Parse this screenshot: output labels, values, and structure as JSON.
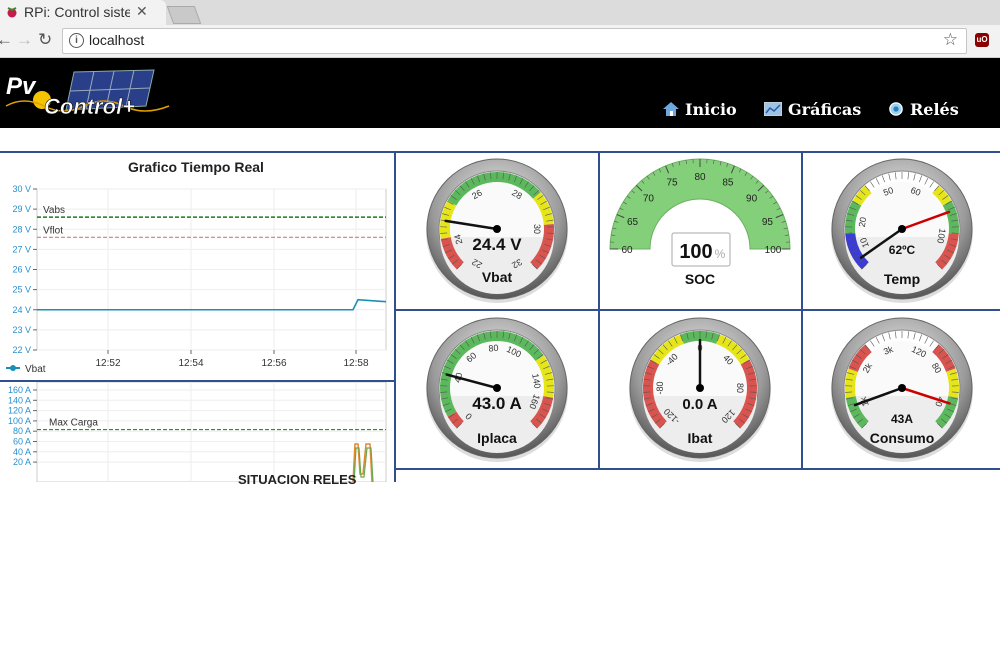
{
  "browser": {
    "tab_title": "RPi: Control sistema",
    "url": "localhost",
    "ext_label": "uO"
  },
  "header": {
    "logo_text": "PvControl+",
    "menu": [
      {
        "label": "Inicio",
        "icon": "home-icon"
      },
      {
        "label": "Gráficas",
        "icon": "chart-image-icon"
      },
      {
        "label": "Relés",
        "icon": "relay-circle-icon"
      }
    ]
  },
  "colors": {
    "accent": "#2f4f8f",
    "green": "#5cb85c",
    "yellow": "#e5e51a",
    "red": "#d9534f",
    "header_bg": "#000000"
  },
  "chart1": {
    "title": "Grafico Tiempo Real",
    "y_ticks": [
      "30 V",
      "29 V",
      "28 V",
      "27 V",
      "26 V",
      "25 V",
      "24 V",
      "23 V",
      "22 V"
    ],
    "x_ticks": [
      "12:52",
      "12:54",
      "12:56",
      "12:58"
    ],
    "lines": [
      {
        "label": "Vabs"
      },
      {
        "label": "Vflot"
      }
    ],
    "legend": "Vbat"
  },
  "chart2": {
    "y_ticks": [
      "160 A",
      "140 A",
      "120 A",
      "100 A",
      "80 A",
      "60 A",
      "40 A",
      "20 A"
    ],
    "line_label": "Max Carga"
  },
  "chart_data": [
    {
      "type": "line",
      "title": "Grafico Tiempo Real",
      "x": [
        "12:51",
        "12:52",
        "12:53",
        "12:54",
        "12:55",
        "12:56",
        "12:57",
        "12:58",
        "12:58.5",
        "12:59"
      ],
      "series": [
        {
          "name": "Vbat",
          "values": [
            24.0,
            24.0,
            24.0,
            24.0,
            24.0,
            24.0,
            24.0,
            24.0,
            24.5,
            24.4
          ]
        },
        {
          "name": "Vabs",
          "values": [
            28.6,
            28.6,
            28.6,
            28.6,
            28.6,
            28.6,
            28.6,
            28.6,
            28.6,
            28.6
          ]
        },
        {
          "name": "Vflot",
          "values": [
            27.6,
            27.6,
            27.6,
            27.6,
            27.6,
            27.6,
            27.6,
            27.6,
            27.6,
            27.6
          ]
        }
      ],
      "ylim": [
        22,
        30
      ]
    },
    {
      "type": "line",
      "series": [
        {
          "name": "Max Carga",
          "values": [
            83
          ]
        }
      ],
      "ylim": [
        0,
        160
      ]
    }
  ],
  "gauges": {
    "vbat": {
      "value_text": "24.4 V",
      "label": "Vbat",
      "value": 24.4,
      "ticks": [
        "22",
        "24",
        "26",
        "28",
        "30",
        "32"
      ]
    },
    "soc": {
      "value_text": "100",
      "unit": "%",
      "label": "SOC",
      "value": 100,
      "ticks": [
        "60",
        "65",
        "70",
        "75",
        "80",
        "85",
        "90",
        "95",
        "100"
      ]
    },
    "temp": {
      "value_text": "62ºC",
      "label": "Temp",
      "ticks": [
        "0",
        "10",
        "20",
        "30",
        "40",
        "50",
        "60",
        "100"
      ]
    },
    "iplaca": {
      "value_text": "43.0 A",
      "label": "Iplaca",
      "value": 43.0,
      "ticks": [
        "0",
        "40",
        "60",
        "80",
        "100",
        "140",
        "160"
      ]
    },
    "ibat": {
      "value_text": "0.0 A",
      "label": "Ibat",
      "value": 0.0,
      "ticks": [
        "-120",
        "-80",
        "-40",
        "0",
        "40",
        "80",
        "120"
      ]
    },
    "consumo": {
      "value_text": "43A",
      "label": "Consumo",
      "ticks": [
        "1k",
        "2k",
        "3k",
        "120",
        "80",
        "40"
      ]
    }
  },
  "reles": {
    "title": "SITUACION RELES"
  }
}
